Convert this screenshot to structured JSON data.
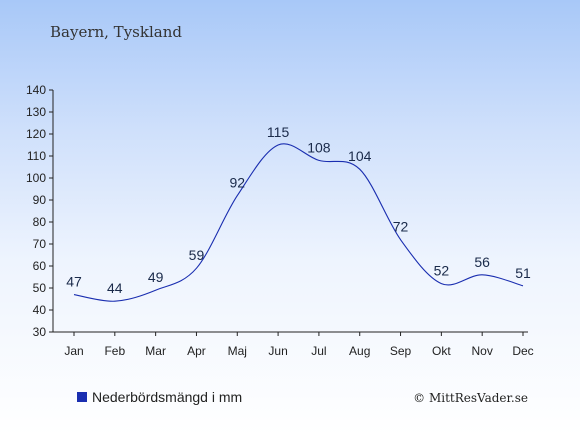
{
  "subtitle": "Bayern, Tyskland",
  "credit": "© MittResVader.se",
  "colors": {
    "line": "#1a2eb0",
    "legend_marker": "#1a2eb0",
    "axis": "#222222"
  },
  "chart_data": {
    "type": "line",
    "categories": [
      "Jan",
      "Feb",
      "Mar",
      "Apr",
      "Maj",
      "Jun",
      "Jul",
      "Aug",
      "Sep",
      "Okt",
      "Nov",
      "Dec"
    ],
    "series": [
      {
        "name": "Nederbördsmängd i mm",
        "values": [
          47,
          44,
          49,
          59,
          92,
          115,
          108,
          104,
          72,
          52,
          56,
          51
        ]
      }
    ],
    "ylim": [
      30,
      140
    ],
    "yticks": [
      30,
      40,
      50,
      60,
      70,
      80,
      90,
      100,
      110,
      120,
      130,
      140
    ],
    "grid": false,
    "legend": "bottom-left",
    "data_labels": true
  }
}
